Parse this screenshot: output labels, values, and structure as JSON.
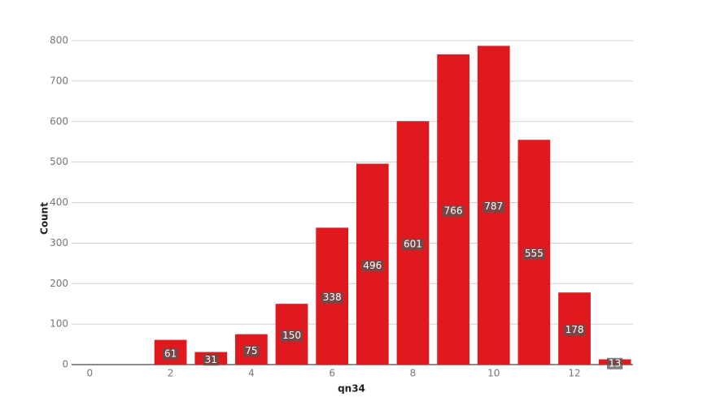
{
  "chart_data": {
    "type": "bar",
    "x": [
      2,
      3,
      4,
      5,
      6,
      7,
      8,
      9,
      10,
      11,
      12,
      13
    ],
    "values": [
      61,
      31,
      75,
      150,
      338,
      496,
      601,
      766,
      787,
      555,
      178,
      13
    ],
    "color": "#e0191e",
    "xlabel": "qn34",
    "ylabel": "Count",
    "xlim": [
      -0.45,
      13.45
    ],
    "xticks": [
      0,
      2,
      4,
      6,
      8,
      10,
      12
    ],
    "ylim": [
      0,
      800
    ],
    "yticks": [
      0,
      100,
      200,
      300,
      400,
      500,
      600,
      700,
      800
    ],
    "grid": true
  }
}
